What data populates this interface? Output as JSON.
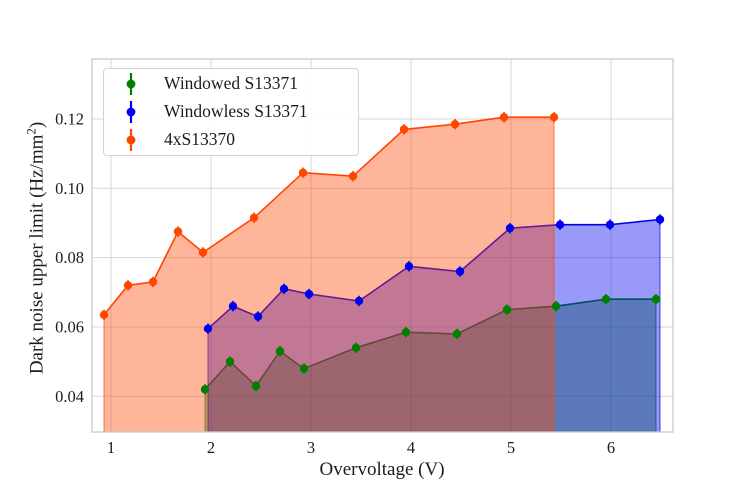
{
  "figure": {
    "background": "#ffffff"
  },
  "chart_data": {
    "type": "area",
    "title": "",
    "xlabel": "Overvoltage (V)",
    "ylabel": "Dark noise upper limit (Hz/mm²)",
    "ylabel_parts": {
      "prefix": "Dark noise upper limit (Hz/mm",
      "sup": "2",
      "suffix": ")"
    },
    "xlim": [
      0.81,
      6.62
    ],
    "ylim": [
      0.0297,
      0.1373
    ],
    "xticks": [
      1,
      2,
      3,
      4,
      5,
      6
    ],
    "xtick_labels": [
      "1",
      "2",
      "3",
      "4",
      "5",
      "6"
    ],
    "yticks": [
      0.04,
      0.06,
      0.08,
      0.1,
      0.12
    ],
    "ytick_labels": [
      "0.04",
      "0.06",
      "0.08",
      "0.10",
      "0.12"
    ],
    "grid": true,
    "grid_color": "#d7d7d7",
    "spine_color": "#c9c9c9",
    "text_color": "#1c1c1c",
    "fill_alpha": 0.4,
    "legend": {
      "position": "upper left",
      "border_color": "#d3d3d3",
      "background": "rgba(255,255,255,0.95)"
    },
    "series": [
      {
        "name": "Windowed S13371",
        "color": "#008000",
        "marker": "circle-errorbar",
        "yerr": 0.0015,
        "x": [
          1.94,
          2.19,
          2.45,
          2.69,
          2.93,
          3.45,
          3.95,
          4.46,
          4.96,
          5.45,
          5.95,
          6.45
        ],
        "y": [
          0.042,
          0.05,
          0.043,
          0.053,
          0.048,
          0.054,
          0.0585,
          0.058,
          0.065,
          0.066,
          0.068,
          0.068
        ]
      },
      {
        "name": "Windowless S13371",
        "color": "#0000ee",
        "marker": "circle-errorbar",
        "yerr": 0.0015,
        "x": [
          1.97,
          2.22,
          2.47,
          2.73,
          2.98,
          3.48,
          3.98,
          4.49,
          4.99,
          5.49,
          5.99,
          6.49
        ],
        "y": [
          0.0595,
          0.066,
          0.063,
          0.071,
          0.0695,
          0.0675,
          0.0775,
          0.076,
          0.0885,
          0.0895,
          0.0895,
          0.091
        ]
      },
      {
        "name": "4xS13370",
        "color": "#ff4500",
        "marker": "circle-errorbar",
        "yerr": 0.0015,
        "x": [
          0.93,
          1.17,
          1.42,
          1.67,
          1.92,
          2.43,
          2.92,
          3.42,
          3.93,
          4.44,
          4.93,
          5.43
        ],
        "y": [
          0.0635,
          0.072,
          0.073,
          0.0875,
          0.0815,
          0.0915,
          0.1045,
          0.1035,
          0.117,
          0.1185,
          0.1205,
          0.1205
        ]
      }
    ]
  }
}
